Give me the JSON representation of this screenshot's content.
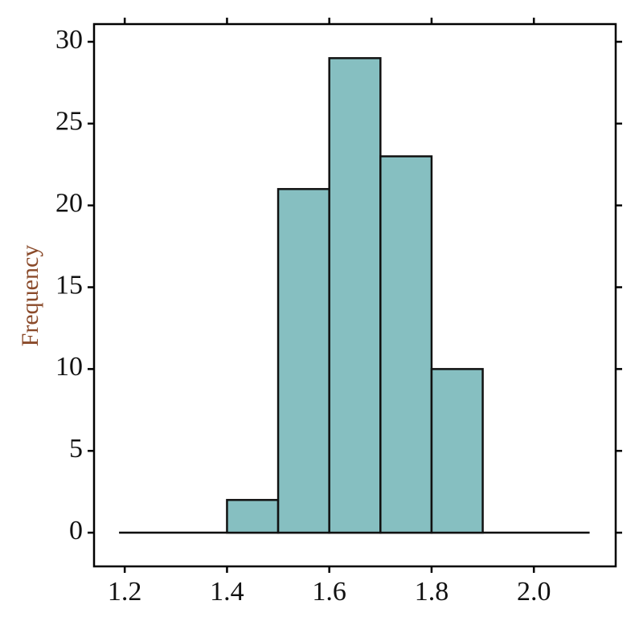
{
  "chart_data": {
    "type": "histogram",
    "y_label": "Frequency",
    "bins": [
      1.4,
      1.5,
      1.6,
      1.7,
      1.8,
      1.9
    ],
    "values": [
      2,
      21,
      29,
      23,
      10
    ],
    "color": "#86bfc1",
    "xlim": [
      1.14,
      2.16
    ],
    "ylim": [
      -2.06,
      31.08
    ],
    "xticks": [
      1.2,
      1.4,
      1.6,
      1.8,
      {
        "value": 2,
        "label": "2.0"
      }
    ],
    "yticks": [
      0,
      5,
      10,
      15,
      20,
      25,
      30
    ]
  }
}
